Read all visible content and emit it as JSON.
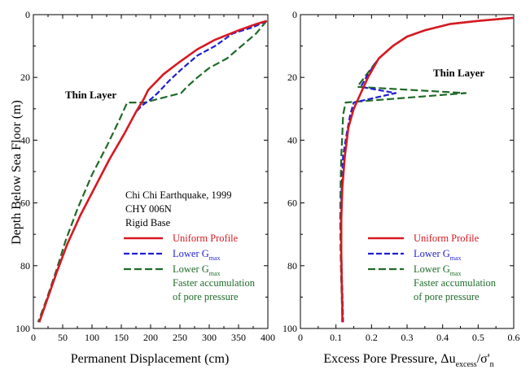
{
  "chart_data": [
    {
      "type": "line",
      "xlabel": "Permanent Displacement (cm)",
      "ylabel": "Depth Below Sea Floor (m)",
      "xlim": [
        0,
        400
      ],
      "ylim": [
        0,
        100
      ],
      "y_inverted": true,
      "x_ticks": [
        "0",
        "50",
        "100",
        "150",
        "200",
        "250",
        "300",
        "350",
        "400"
      ],
      "y_ticks": [
        "0",
        "20",
        "40",
        "60",
        "80",
        "100"
      ],
      "x_tick_values": [
        0,
        50,
        100,
        150,
        200,
        250,
        300,
        350,
        400
      ],
      "y_tick_values": [
        0,
        20,
        40,
        60,
        80,
        100
      ],
      "annotation_label": "Thin Layer",
      "info_lines": [
        "Chi Chi Earthquake, 1999",
        "CHY 006N",
        "Rigid Base"
      ],
      "legend": [
        {
          "label": "Uniform Profile",
          "color": "#d71920",
          "dash": "solid"
        },
        {
          "label": "Lower G",
          "sub": "max",
          "color": "#1f1fd4",
          "dash": "dash"
        },
        {
          "label": "Lower G",
          "sub": "max",
          "extra_lines": [
            "Faster accumulation",
            "of pore pressure"
          ],
          "color": "#1e6b28",
          "dash": "dash"
        }
      ],
      "series": [
        {
          "label": "Uniform Profile",
          "color": "#d71920",
          "dash": "solid",
          "points": [
            [
              398,
              2
            ],
            [
              380,
              3
            ],
            [
              350,
              5
            ],
            [
              310,
              8
            ],
            [
              280,
              11
            ],
            [
              250,
              15
            ],
            [
              222,
              19
            ],
            [
              196,
              24
            ],
            [
              188,
              27
            ],
            [
              175,
              31
            ],
            [
              155,
              38
            ],
            [
              130,
              46
            ],
            [
              105,
              55
            ],
            [
              80,
              64
            ],
            [
              58,
              73
            ],
            [
              40,
              82
            ],
            [
              25,
              90
            ],
            [
              10,
              98
            ]
          ]
        },
        {
          "label": "Lower G max",
          "color": "#1f1fd4",
          "dash": "dash",
          "points": [
            [
              398,
              2
            ],
            [
              375,
              4
            ],
            [
              340,
              6
            ],
            [
              310,
              10
            ],
            [
              280,
              13
            ],
            [
              255,
              17
            ],
            [
              232,
              21
            ],
            [
              212,
              25
            ],
            [
              200,
              27
            ],
            [
              185,
              29
            ],
            [
              175,
              31
            ],
            [
              155,
              38
            ],
            [
              130,
              46
            ],
            [
              105,
              55
            ],
            [
              80,
              64
            ],
            [
              58,
              73
            ],
            [
              40,
              82
            ],
            [
              25,
              90
            ],
            [
              10,
              98
            ]
          ]
        },
        {
          "label": "Lower G max, faster accumulation of pore pressure",
          "color": "#1e6b28",
          "dash": "dash",
          "points": [
            [
              398,
              2
            ],
            [
              380,
              6
            ],
            [
              355,
              10
            ],
            [
              330,
              14
            ],
            [
              300,
              17
            ],
            [
              280,
              20
            ],
            [
              262,
              23
            ],
            [
              252,
              25
            ],
            [
              210,
              27
            ],
            [
              190,
              28
            ],
            [
              160,
              28
            ],
            [
              148,
              33
            ],
            [
              125,
              42
            ],
            [
              100,
              51
            ],
            [
              75,
              62
            ],
            [
              55,
              72
            ],
            [
              40,
              81
            ],
            [
              22,
              91
            ],
            [
              8,
              98
            ]
          ]
        }
      ]
    },
    {
      "type": "line",
      "xlabel": "Excess Pore Pressure, Δu",
      "xlabel_sub": "excess",
      "xlabel_rest": "/σ'",
      "xlabel_sub2": "n",
      "xlim": [
        0,
        0.6
      ],
      "ylim": [
        0,
        100
      ],
      "y_inverted": true,
      "x_ticks": [
        "0",
        "0.1",
        "0.2",
        "0.3",
        "0.4",
        "0.5",
        "0.6"
      ],
      "y_ticks": [
        "0",
        "20",
        "40",
        "60",
        "80",
        "100"
      ],
      "x_tick_values": [
        0,
        0.1,
        0.2,
        0.3,
        0.4,
        0.5,
        0.6
      ],
      "y_tick_values": [
        0,
        20,
        40,
        60,
        80,
        100
      ],
      "annotation_label": "Thin Layer",
      "legend": [
        {
          "label": "Uniform Profile",
          "color": "#d71920",
          "dash": "solid"
        },
        {
          "label": "Lower G",
          "sub": "max",
          "color": "#1f1fd4",
          "dash": "dash"
        },
        {
          "label": "Lower G",
          "sub": "max",
          "extra_lines": [
            "Faster accumulation",
            "of pore pressure"
          ],
          "color": "#1e6b28",
          "dash": "dash"
        }
      ],
      "series": [
        {
          "label": "Uniform Profile",
          "color": "#d71920",
          "dash": "solid",
          "points": [
            [
              0.598,
              1
            ],
            [
              0.5,
              2
            ],
            [
              0.42,
              3
            ],
            [
              0.35,
              5
            ],
            [
              0.3,
              7
            ],
            [
              0.26,
              10
            ],
            [
              0.22,
              14
            ],
            [
              0.19,
              20
            ],
            [
              0.17,
              25
            ],
            [
              0.15,
              30
            ],
            [
              0.135,
              36
            ],
            [
              0.125,
              45
            ],
            [
              0.118,
              55
            ],
            [
              0.115,
              65
            ],
            [
              0.115,
              75
            ],
            [
              0.116,
              85
            ],
            [
              0.118,
              93
            ],
            [
              0.118,
              98
            ]
          ]
        },
        {
          "label": "Lower G max",
          "color": "#1f1fd4",
          "dash": "dash",
          "points": [
            [
              0.598,
              1
            ],
            [
              0.5,
              2
            ],
            [
              0.42,
              3
            ],
            [
              0.35,
              5
            ],
            [
              0.3,
              7
            ],
            [
              0.26,
              10
            ],
            [
              0.22,
              14
            ],
            [
              0.19,
              19
            ],
            [
              0.17,
              23
            ],
            [
              0.268,
              25
            ],
            [
              0.15,
              28
            ],
            [
              0.14,
              32
            ],
            [
              0.13,
              38
            ],
            [
              0.12,
              45
            ],
            [
              0.116,
              55
            ],
            [
              0.114,
              65
            ],
            [
              0.115,
              75
            ],
            [
              0.117,
              85
            ],
            [
              0.119,
              93
            ],
            [
              0.12,
              98
            ]
          ]
        },
        {
          "label": "Lower G max, faster accumulation of pore pressure",
          "color": "#1e6b28",
          "dash": "dash",
          "points": [
            [
              0.598,
              1
            ],
            [
              0.5,
              2
            ],
            [
              0.42,
              3
            ],
            [
              0.35,
              5
            ],
            [
              0.3,
              7
            ],
            [
              0.26,
              10
            ],
            [
              0.22,
              14
            ],
            [
              0.18,
              20
            ],
            [
              0.16,
              23
            ],
            [
              0.465,
              25
            ],
            [
              0.127,
              28
            ],
            [
              0.12,
              32
            ],
            [
              0.118,
              38
            ],
            [
              0.115,
              45
            ],
            [
              0.113,
              55
            ],
            [
              0.112,
              65
            ],
            [
              0.113,
              75
            ],
            [
              0.115,
              85
            ],
            [
              0.117,
              93
            ],
            [
              0.118,
              98
            ]
          ]
        }
      ]
    }
  ]
}
